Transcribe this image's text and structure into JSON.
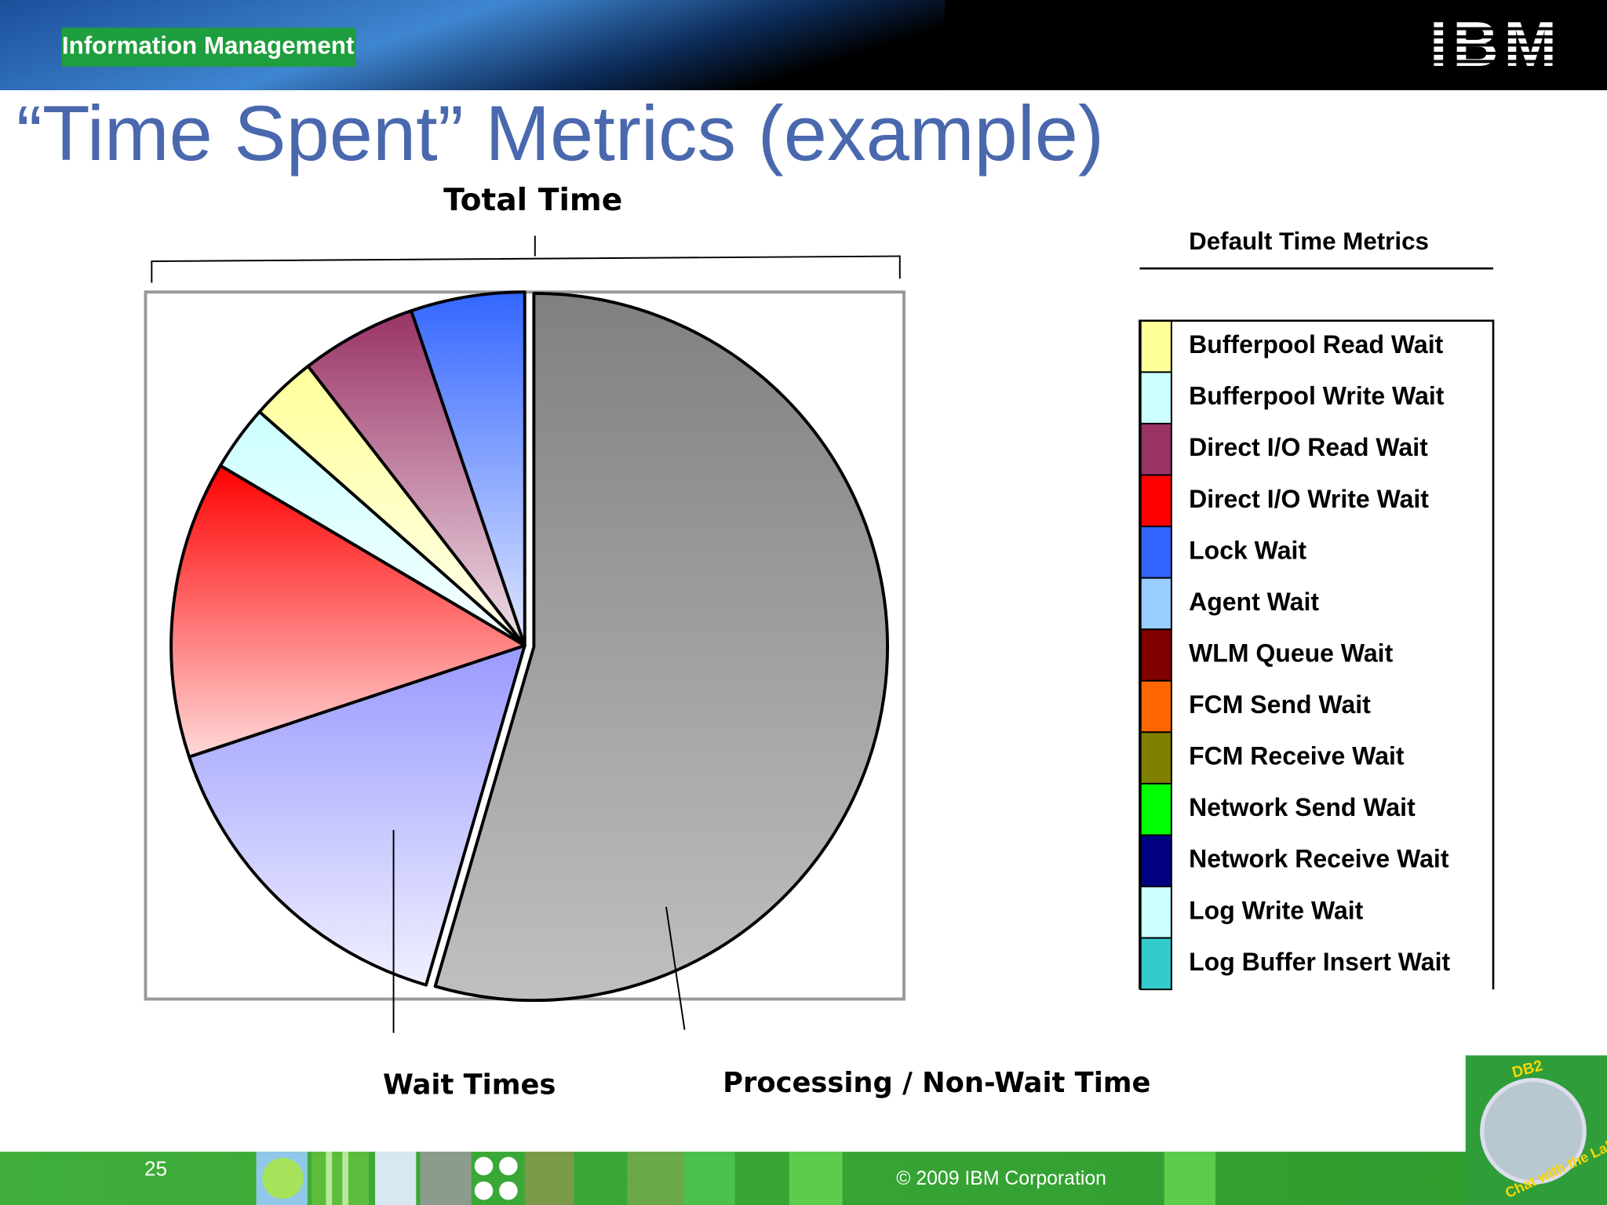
{
  "header": {
    "section": "Information Management",
    "logo": "IBM"
  },
  "title": "“Time Spent” Metrics (example)",
  "chart_data": {
    "type": "pie",
    "values": [
      54.5,
      15.4,
      13.6,
      3,
      3,
      5.3,
      5.2
    ],
    "colors": [
      "#808080",
      "#9999ff",
      "#ff0000",
      "#ccffff",
      "#ffff99",
      "#993366",
      "#3366ff"
    ],
    "annotations": {
      "total": "Total Time",
      "wait": "Wait Times",
      "processing": "Processing / Non-Wait Time"
    },
    "legend": {
      "title": "Default Time Metrics",
      "items": [
        {
          "label": "Bufferpool Read Wait",
          "color": "#ffff99"
        },
        {
          "label": "Bufferpool Write Wait",
          "color": "#ccffff"
        },
        {
          "label": "Direct I/O Read Wait",
          "color": "#993366"
        },
        {
          "label": "Direct I/O Write Wait",
          "color": "#ff0000"
        },
        {
          "label": "Lock Wait",
          "color": "#3366ff"
        },
        {
          "label": "Agent Wait",
          "color": "#99ccff"
        },
        {
          "label": "WLM Queue Wait",
          "color": "#800000"
        },
        {
          "label": "FCM Send Wait",
          "color": "#ff6600"
        },
        {
          "label": "FCM Receive Wait",
          "color": "#808000"
        },
        {
          "label": "Network Send Wait",
          "color": "#00ff00"
        },
        {
          "label": "Network Receive Wait",
          "color": "#000080"
        },
        {
          "label": "Log Write Wait",
          "color": "#ccffff"
        },
        {
          "label": "Log Buffer Insert Wait",
          "color": "#33cccc"
        }
      ]
    }
  },
  "footer": {
    "page": "25",
    "copyright": "© 2009  IBM Corporation",
    "badge": [
      "DB2",
      "Chat with the Lab"
    ]
  }
}
